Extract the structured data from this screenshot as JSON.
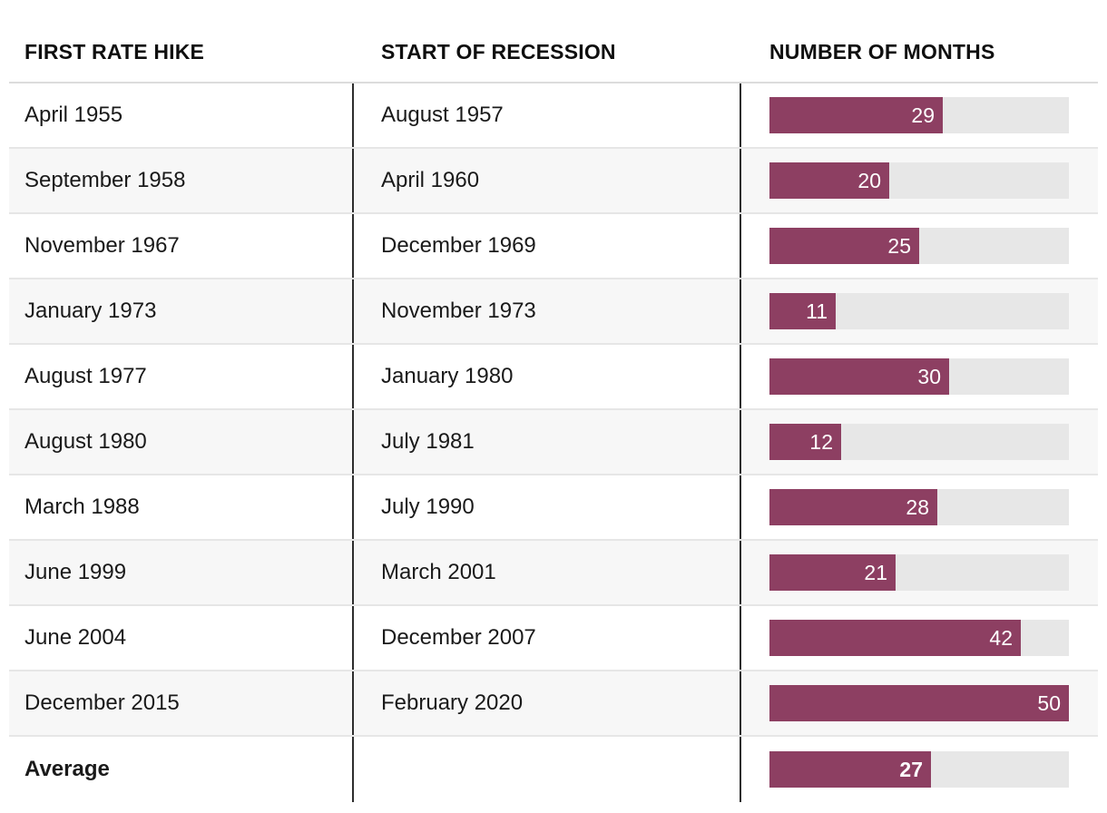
{
  "table": {
    "headers": [
      "FIRST RATE HIKE",
      "START OF RECESSION",
      "NUMBER OF MONTHS"
    ]
  },
  "chart_data": {
    "type": "bar",
    "orientation": "horizontal",
    "columns": [
      "FIRST RATE HIKE",
      "START OF RECESSION",
      "NUMBER OF MONTHS"
    ],
    "xlim": [
      0,
      50
    ],
    "grid": false,
    "rows": [
      {
        "first_rate_hike": "April 1955",
        "start_of_recession": "August 1957",
        "months": 29,
        "emphasis": false
      },
      {
        "first_rate_hike": "September 1958",
        "start_of_recession": "April 1960",
        "months": 20,
        "emphasis": false
      },
      {
        "first_rate_hike": "November 1967",
        "start_of_recession": "December 1969",
        "months": 25,
        "emphasis": false
      },
      {
        "first_rate_hike": "January 1973",
        "start_of_recession": "November 1973",
        "months": 11,
        "emphasis": false
      },
      {
        "first_rate_hike": "August 1977",
        "start_of_recession": "January 1980",
        "months": 30,
        "emphasis": false
      },
      {
        "first_rate_hike": "August 1980",
        "start_of_recession": "July 1981",
        "months": 12,
        "emphasis": false
      },
      {
        "first_rate_hike": "March 1988",
        "start_of_recession": "July 1990",
        "months": 28,
        "emphasis": false
      },
      {
        "first_rate_hike": "June 1999",
        "start_of_recession": "March 2001",
        "months": 21,
        "emphasis": false
      },
      {
        "first_rate_hike": "June 2004",
        "start_of_recession": "December 2007",
        "months": 42,
        "emphasis": false
      },
      {
        "first_rate_hike": "December 2015",
        "start_of_recession": "February 2020",
        "months": 50,
        "emphasis": false
      },
      {
        "first_rate_hike": "Average",
        "start_of_recession": "",
        "months": 27,
        "emphasis": true
      }
    ],
    "colors": {
      "bar": "#8d3f62",
      "track": "#e7e7e7",
      "stripe": "#f7f7f7",
      "divider": "#2d2d2d",
      "row_border": "#e6e6e6",
      "text": "#1a1a1a"
    }
  }
}
